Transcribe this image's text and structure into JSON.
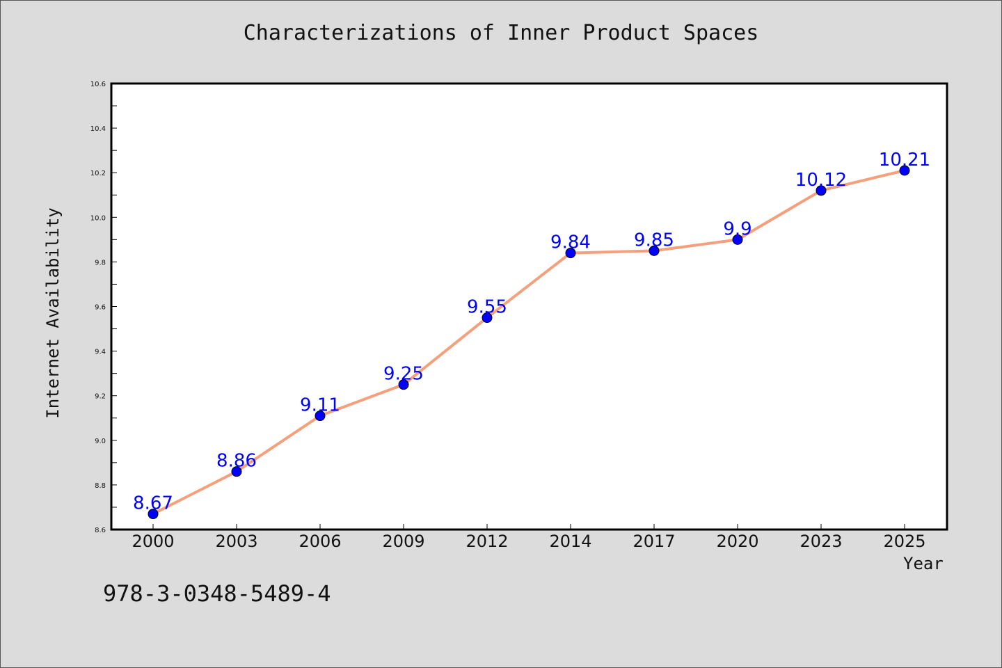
{
  "chart_data": {
    "type": "line",
    "title": "Characterizations of Inner Product Spaces",
    "xlabel": "Year",
    "ylabel": "Internet Availability",
    "categories": [
      "2000",
      "2003",
      "2006",
      "2009",
      "2012",
      "2014",
      "2017",
      "2020",
      "2023",
      "2025"
    ],
    "series": [
      {
        "values": [
          8.67,
          8.86,
          9.11,
          9.25,
          9.55,
          9.84,
          9.85,
          9.9,
          10.12,
          10.21
        ],
        "data_labels": [
          "8.67",
          "8.86",
          "9.11",
          "9.25",
          "9.55",
          "9.84",
          "9.85",
          "9.9",
          "10.12",
          "10.21"
        ],
        "line_color": "#f4a07c",
        "marker_color": "#0000ff"
      }
    ],
    "ylim": [
      8.6,
      10.6
    ],
    "yticks": [
      "8.6",
      "8.8",
      "9.0",
      "9.2",
      "9.4",
      "9.6",
      "9.8",
      "10.0",
      "10.2",
      "10.4",
      "10.6"
    ],
    "grid": false,
    "legend": "none"
  },
  "footer_text": "978-3-0348-5489-4"
}
